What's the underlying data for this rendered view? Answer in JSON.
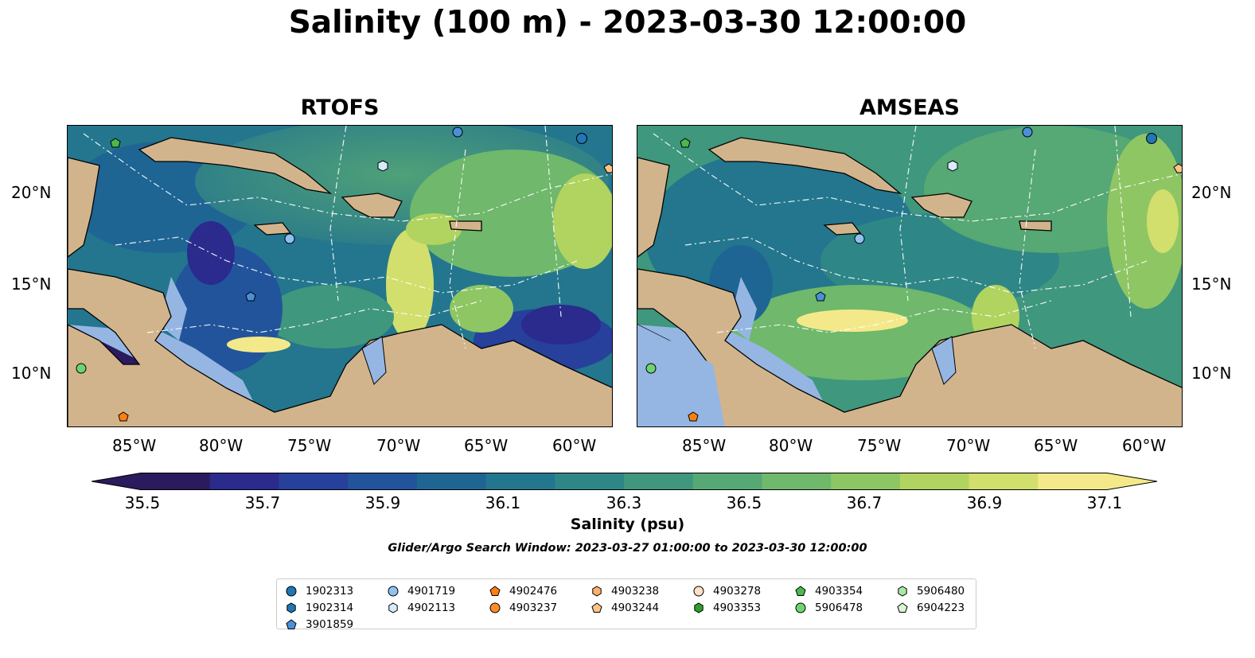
{
  "title": "Salinity (100 m) - 2023-03-30 12:00:00",
  "panels": [
    {
      "title": "RTOFS"
    },
    {
      "title": "AMSEAS"
    }
  ],
  "axes": {
    "lon_labels": [
      "85°W",
      "80°W",
      "75°W",
      "70°W",
      "65°W",
      "60°W"
    ],
    "lat_labels": [
      "20°N",
      "15°N",
      "10°N"
    ]
  },
  "colorbar": {
    "label": "Salinity (psu)",
    "ticks": [
      "35.5",
      "35.7",
      "35.9",
      "36.1",
      "36.3",
      "36.5",
      "36.7",
      "36.9",
      "37.1"
    ],
    "range": [
      35.4,
      37.2
    ],
    "extend": "both",
    "colors": [
      "#2b1a5e",
      "#2a2b8c",
      "#27409c",
      "#22549c",
      "#1e6594",
      "#23768d",
      "#2f8686",
      "#3f977d",
      "#56a874",
      "#6fb86c",
      "#8ec664",
      "#b1d35f",
      "#d2df6c",
      "#f4e98a"
    ]
  },
  "search_window": "Glider/Argo Search Window: 2023-03-27 01:00:00 to 2023-03-30 12:00:00",
  "colors": {
    "land": "#d2b48c",
    "shelf": "#95b6e3",
    "contour": "#ffffff"
  },
  "legend": [
    {
      "id": "1902313",
      "marker": "circle",
      "color": "#1f77b4"
    },
    {
      "id": "1902314",
      "marker": "hexagon",
      "color": "#1f77b4"
    },
    {
      "id": "3901859",
      "marker": "pentagon",
      "color": "#4a90d9"
    },
    {
      "id": "4901719",
      "marker": "circle",
      "color": "#8ec2ee"
    },
    {
      "id": "4902113",
      "marker": "hexagon",
      "color": "#d6ecfc"
    },
    {
      "id": "4902476",
      "marker": "pentagon",
      "color": "#ff7f0e"
    },
    {
      "id": "4903237",
      "marker": "circle",
      "color": "#ff8c2a"
    },
    {
      "id": "4903238",
      "marker": "hexagon",
      "color": "#ffae6b"
    },
    {
      "id": "4903244",
      "marker": "pentagon",
      "color": "#ffc48a"
    },
    {
      "id": "4903278",
      "marker": "circle",
      "color": "#fde0c6"
    },
    {
      "id": "4903353",
      "marker": "hexagon",
      "color": "#2ca02c"
    },
    {
      "id": "4903354",
      "marker": "pentagon",
      "color": "#4cb84c"
    },
    {
      "id": "5906478",
      "marker": "circle",
      "color": "#6fd46f"
    },
    {
      "id": "5906480",
      "marker": "hexagon",
      "color": "#a6e8a6"
    },
    {
      "id": "6904223",
      "marker": "pentagon",
      "color": "#d9f5d4"
    }
  ]
}
